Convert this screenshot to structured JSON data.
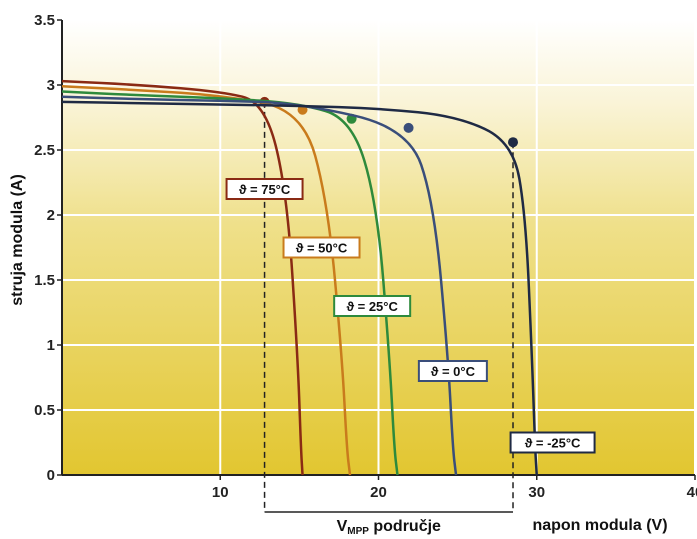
{
  "chart_data": {
    "type": "line",
    "xlabel": "napon modula (V)",
    "ylabel": "struja modula (A)",
    "xlim": [
      0,
      40
    ],
    "ylim": [
      0,
      3.5
    ],
    "x_ticks": [
      "10",
      "20",
      "30",
      "40"
    ],
    "y_ticks": [
      "0",
      "0.5",
      "1",
      "1.5",
      "2",
      "2.5",
      "3",
      "3.5"
    ],
    "grid": true,
    "mpp_range_label": "V",
    "mpp_range_label_sub": "MPP",
    "mpp_range_label_rest": " područje",
    "mpp_range_v": [
      12.8,
      28.5
    ],
    "series": [
      {
        "name": "ϑ = 75°C",
        "color": "#8a2a14",
        "x": [
          0,
          5,
          10,
          12.8,
          14.2,
          14.9,
          15.1,
          15.2
        ],
        "y": [
          3.03,
          3.0,
          2.95,
          2.87,
          2.2,
          0.9,
          0.2,
          0.0
        ],
        "mpp": [
          12.8,
          2.87
        ]
      },
      {
        "name": "ϑ = 50°C",
        "color": "#c97b1c",
        "x": [
          0,
          5,
          10,
          15.2,
          16.8,
          17.7,
          18.0,
          18.2
        ],
        "y": [
          2.99,
          2.96,
          2.92,
          2.81,
          2.1,
          0.9,
          0.2,
          0.0
        ],
        "mpp": [
          15.2,
          2.81
        ]
      },
      {
        "name": "ϑ = 25°C",
        "color": "#2e8a3c",
        "x": [
          0,
          5,
          10,
          15,
          18.3,
          19.9,
          20.7,
          21.0,
          21.2
        ],
        "y": [
          2.95,
          2.92,
          2.9,
          2.86,
          2.74,
          2.1,
          0.9,
          0.2,
          0.0
        ],
        "mpp": [
          18.3,
          2.74
        ]
      },
      {
        "name": "ϑ = 0°C",
        "color": "#3a4e7a",
        "x": [
          0,
          5,
          10,
          15,
          21.9,
          23.5,
          24.4,
          24.7,
          24.9
        ],
        "y": [
          2.91,
          2.89,
          2.88,
          2.86,
          2.67,
          2.1,
          0.9,
          0.2,
          0.0
        ],
        "mpp": [
          21.9,
          2.67
        ]
      },
      {
        "name": "ϑ = -25°C",
        "color": "#1f2a44",
        "x": [
          0,
          5,
          10,
          15,
          20,
          25,
          28.5,
          29.3,
          29.7,
          29.9,
          30.0
        ],
        "y": [
          2.87,
          2.86,
          2.85,
          2.84,
          2.82,
          2.76,
          2.56,
          2.0,
          0.9,
          0.2,
          0.0
        ],
        "mpp": [
          28.5,
          2.56
        ]
      }
    ],
    "labels": [
      {
        "text": "ϑ = 75°C",
        "x": 12.8,
        "y": 2.2
      },
      {
        "text": "ϑ = 50°C",
        "x": 16.4,
        "y": 1.75
      },
      {
        "text": "ϑ = 25°C",
        "x": 19.6,
        "y": 1.3
      },
      {
        "text": "ϑ = 0°C",
        "x": 24.7,
        "y": 0.8
      },
      {
        "text": "ϑ = -25°C",
        "x": 31.0,
        "y": 0.25
      }
    ]
  }
}
